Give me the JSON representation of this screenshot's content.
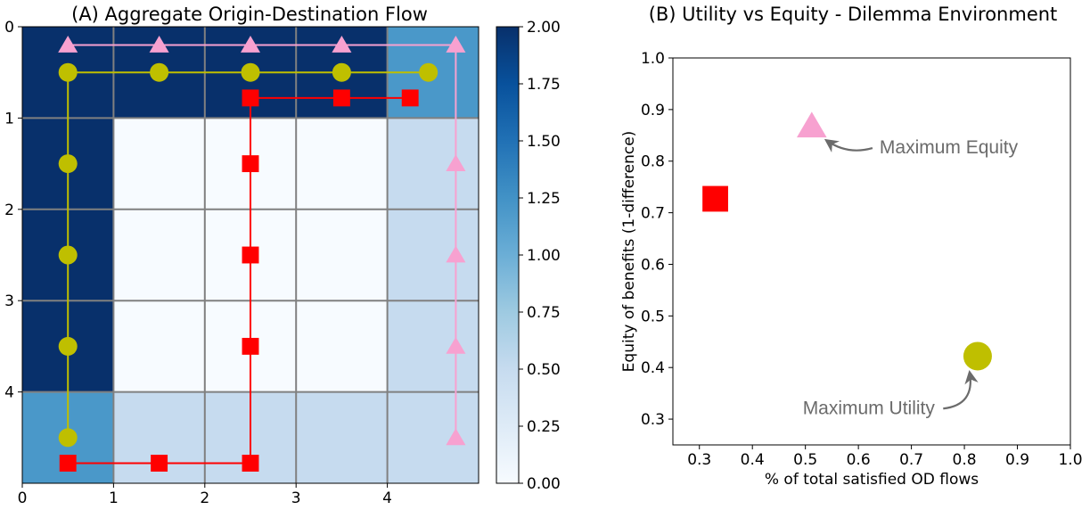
{
  "chart_data": [
    {
      "type": "heatmap",
      "title": "(A) Aggregate Origin-Destination Flow",
      "x_ticks": [
        "0",
        "1",
        "2",
        "3",
        "4"
      ],
      "y_ticks": [
        "0",
        "1",
        "2",
        "3",
        "4"
      ],
      "xlim": [
        0,
        5
      ],
      "ylim": [
        5,
        0
      ],
      "grid": true,
      "cells": [
        [
          2.0,
          2.0,
          2.0,
          2.0,
          1.2
        ],
        [
          2.0,
          0.0,
          0.0,
          0.0,
          0.5
        ],
        [
          2.0,
          0.0,
          0.0,
          0.0,
          0.5
        ],
        [
          2.0,
          0.0,
          0.0,
          0.0,
          0.5
        ],
        [
          1.2,
          0.5,
          0.5,
          0.5,
          0.5
        ]
      ],
      "colorbar": {
        "min": 0,
        "max": 2,
        "ticks": [
          "0.00",
          "0.25",
          "0.50",
          "0.75",
          "1.00",
          "1.25",
          "1.50",
          "1.75",
          "2.00"
        ]
      },
      "routes": [
        {
          "marker": "triangle",
          "color": "#f7a1d0",
          "points": [
            [
              0.5,
              0.2
            ],
            [
              1.5,
              0.2
            ],
            [
              2.5,
              0.2
            ],
            [
              3.5,
              0.2
            ],
            [
              4.75,
              0.2
            ],
            [
              4.75,
              1.5
            ],
            [
              4.75,
              2.5
            ],
            [
              4.75,
              3.5
            ],
            [
              4.75,
              4.5
            ]
          ]
        },
        {
          "marker": "circle",
          "color": "#bfbf00",
          "points": [
            [
              4.45,
              0.5
            ],
            [
              3.5,
              0.5
            ],
            [
              2.5,
              0.5
            ],
            [
              1.5,
              0.5
            ],
            [
              0.5,
              0.5
            ],
            [
              0.5,
              1.5
            ],
            [
              0.5,
              2.5
            ],
            [
              0.5,
              3.5
            ],
            [
              0.5,
              4.5
            ]
          ]
        },
        {
          "marker": "square",
          "color": "#ff0000",
          "points": [
            [
              4.25,
              0.78
            ],
            [
              3.5,
              0.78
            ],
            [
              2.5,
              0.78
            ],
            [
              2.5,
              1.5
            ],
            [
              2.5,
              2.5
            ],
            [
              2.5,
              3.5
            ],
            [
              2.5,
              4.78
            ],
            [
              1.5,
              4.78
            ],
            [
              0.5,
              4.78
            ]
          ]
        }
      ]
    },
    {
      "type": "scatter",
      "title": "(B) Utility vs Equity - Dilemma Environment",
      "xlabel": "% of total satisfied OD flows",
      "ylabel": "Equity of benefits (1-difference)",
      "xlim": [
        0.25,
        1.0
      ],
      "ylim": [
        0.25,
        1.0
      ],
      "x_ticks": [
        "0.3",
        "0.4",
        "0.5",
        "0.6",
        "0.7",
        "0.8",
        "0.9",
        "1.0"
      ],
      "y_ticks": [
        "0.3",
        "0.4",
        "0.5",
        "0.6",
        "0.7",
        "0.8",
        "0.9",
        "1.0"
      ],
      "grid": false,
      "points": [
        {
          "marker": "square",
          "color": "#ff0000",
          "x": 0.33,
          "y": 0.727
        },
        {
          "marker": "triangle",
          "color": "#f7a1d0",
          "x": 0.512,
          "y": 0.868
        },
        {
          "marker": "circle",
          "color": "#bfbf00",
          "x": 0.825,
          "y": 0.422
        }
      ],
      "annotations": [
        {
          "text": "Maximum Equity",
          "x": 0.64,
          "y": 0.815,
          "target_x": 0.54,
          "target_y": 0.84
        },
        {
          "text": "Maximum Utility",
          "x": 0.495,
          "y": 0.31,
          "target_x": 0.81,
          "target_y": 0.39
        }
      ]
    }
  ]
}
